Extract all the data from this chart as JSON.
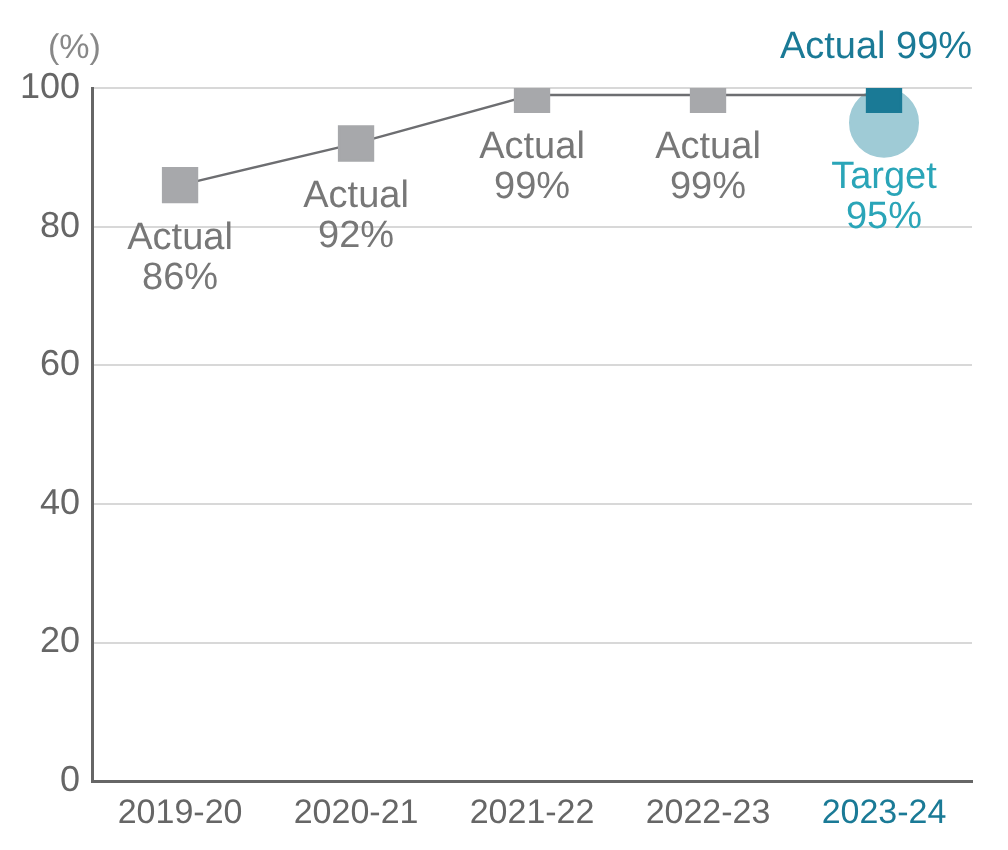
{
  "chart_data": {
    "type": "line",
    "ylabel": "(%)",
    "categories": [
      "2019-20",
      "2020-21",
      "2021-22",
      "2022-23",
      "2023-24"
    ],
    "series": [
      {
        "name": "Actual",
        "color": "#a7a8ab",
        "colors": [
          "#a7a8ab",
          "#a7a8ab",
          "#a7a8ab",
          "#a7a8ab",
          "#1a7a96"
        ],
        "marker": "square",
        "values": [
          86,
          92,
          99,
          99,
          99
        ],
        "value_labels": [
          "86%",
          "92%",
          "99%",
          "99%",
          "99%"
        ]
      },
      {
        "name": "Target",
        "type": "scatter",
        "color": "#9fcbd6",
        "marker": "circle",
        "x": [
          "2023-24"
        ],
        "values": [
          95
        ],
        "value_labels": [
          "95%"
        ]
      }
    ],
    "ylim": [
      0,
      100
    ],
    "yticks": [
      0,
      20,
      40,
      60,
      80,
      100
    ],
    "grid": "y"
  }
}
